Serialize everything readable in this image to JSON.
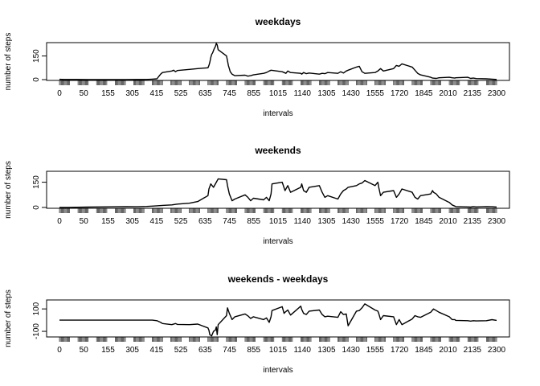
{
  "chart_data": [
    {
      "type": "line",
      "title": "weekdays",
      "xlabel": "intervals",
      "ylabel": "number of steps",
      "ylim": [
        -5,
        235
      ],
      "yticks": [
        0,
        150
      ],
      "xtick_labels": [
        "0",
        "50",
        "155",
        "305",
        "415",
        "525",
        "635",
        "745",
        "855",
        "1015",
        "1140",
        "1305",
        "1430",
        "1555",
        "1720",
        "1845",
        "2010",
        "2135",
        "2300"
      ],
      "series": [
        {
          "x": [
            0,
            25,
            50,
            100,
            155,
            230,
            305,
            360,
            415,
            470,
            500,
            525,
            535,
            545,
            555,
            605,
            615,
            625,
            635,
            700,
            745,
            800,
            805,
            810,
            815,
            820,
            825,
            830,
            835,
            840,
            845,
            850,
            855,
            900,
            905,
            910,
            915,
            920,
            930,
            945,
            1000,
            1015,
            1030,
            1045,
            1100,
            1115,
            1130,
            1140,
            1200,
            1210,
            1220,
            1230,
            1245,
            1300,
            1305,
            1315,
            1330,
            1345,
            1400,
            1415,
            1430,
            1445,
            1500,
            1515,
            1530,
            1545,
            1555,
            1600,
            1615,
            1630,
            1645,
            1700,
            1715,
            1720,
            1730,
            1745,
            1800,
            1815,
            1830,
            1845,
            1900,
            1915,
            1930,
            1945,
            2000,
            2010,
            2030,
            2045,
            2100,
            2115,
            2130,
            2135,
            2200,
            2215,
            2230,
            2245,
            2300,
            2330,
            2355
          ],
          "y": [
            2,
            1,
            1,
            1,
            0,
            0,
            0,
            0,
            1,
            1,
            3,
            5,
            20,
            35,
            45,
            55,
            60,
            50,
            58,
            65,
            70,
            75,
            90,
            110,
            140,
            160,
            170,
            185,
            200,
            210,
            230,
            220,
            190,
            150,
            120,
            90,
            70,
            50,
            35,
            25,
            28,
            22,
            25,
            30,
            40,
            45,
            55,
            60,
            50,
            45,
            40,
            55,
            45,
            40,
            35,
            45,
            38,
            42,
            35,
            40,
            38,
            45,
            40,
            50,
            42,
            55,
            60,
            80,
            85,
            50,
            40,
            45,
            55,
            60,
            70,
            55,
            70,
            90,
            85,
            100,
            80,
            60,
            40,
            30,
            15,
            10,
            8,
            12,
            15,
            12,
            10,
            12,
            15,
            8,
            10,
            7,
            5,
            3,
            1
          ]
        }
      ]
    },
    {
      "type": "line",
      "title": "weekends",
      "xlabel": "intervals",
      "ylabel": "number of steps",
      "ylim": [
        -5,
        215
      ],
      "yticks": [
        0,
        150
      ],
      "xtick_labels": [
        "0",
        "50",
        "155",
        "305",
        "415",
        "525",
        "635",
        "745",
        "855",
        "1015",
        "1140",
        "1305",
        "1430",
        "1555",
        "1720",
        "1845",
        "2010",
        "2135",
        "2300"
      ],
      "series": [
        {
          "x": [
            0,
            50,
            100,
            155,
            230,
            305,
            360,
            415,
            470,
            500,
            525,
            555,
            605,
            635,
            700,
            745,
            800,
            805,
            815,
            830,
            845,
            855,
            900,
            905,
            915,
            930,
            945,
            1000,
            1015,
            1030,
            1045,
            1100,
            1115,
            1130,
            1140,
            1145,
            1200,
            1215,
            1230,
            1245,
            1300,
            1305,
            1315,
            1330,
            1345,
            1400,
            1415,
            1430,
            1445,
            1500,
            1515,
            1530,
            1545,
            1555,
            1600,
            1615,
            1630,
            1645,
            1700,
            1715,
            1720,
            1730,
            1745,
            1800,
            1815,
            1830,
            1845,
            1900,
            1915,
            1930,
            1945,
            2000,
            2010,
            2015,
            2030,
            2045,
            2100,
            2115,
            2130,
            2135,
            2200,
            2215,
            2230,
            2245,
            2300,
            2330,
            2355
          ],
          "y": [
            0,
            0,
            1,
            2,
            3,
            4,
            5,
            4,
            6,
            8,
            10,
            12,
            15,
            20,
            25,
            35,
            70,
            110,
            140,
            120,
            150,
            170,
            165,
            130,
            80,
            40,
            50,
            75,
            60,
            40,
            55,
            45,
            60,
            40,
            80,
            140,
            150,
            100,
            130,
            90,
            120,
            140,
            100,
            90,
            120,
            130,
            90,
            60,
            70,
            50,
            80,
            100,
            110,
            120,
            130,
            140,
            145,
            160,
            130,
            150,
            120,
            70,
            90,
            100,
            60,
            80,
            110,
            90,
            60,
            50,
            70,
            80,
            100,
            90,
            80,
            60,
            30,
            15,
            8,
            5,
            3,
            2,
            5,
            3,
            5,
            4,
            2
          ]
        }
      ]
    },
    {
      "type": "line",
      "title": "weekends - weekdays",
      "xlabel": "intervals",
      "ylabel": "number of steps",
      "ylim": [
        -150,
        180
      ],
      "yticks": [
        -100,
        100
      ],
      "xtick_labels": [
        "0",
        "50",
        "155",
        "305",
        "415",
        "525",
        "635",
        "745",
        "855",
        "1015",
        "1140",
        "1305",
        "1430",
        "1555",
        "1720",
        "1845",
        "2010",
        "2135",
        "2300"
      ],
      "series": [
        {
          "x": [
            0,
            50,
            155,
            305,
            415,
            470,
            500,
            525,
            545,
            555,
            605,
            625,
            635,
            700,
            745,
            800,
            805,
            810,
            820,
            830,
            840,
            845,
            850,
            855,
            900,
            905,
            915,
            930,
            945,
            1000,
            1015,
            1030,
            1045,
            1100,
            1115,
            1130,
            1140,
            1145,
            1200,
            1210,
            1215,
            1230,
            1245,
            1300,
            1305,
            1315,
            1330,
            1345,
            1400,
            1415,
            1430,
            1445,
            1500,
            1515,
            1530,
            1545,
            1555,
            1600,
            1615,
            1630,
            1645,
            1700,
            1715,
            1720,
            1730,
            1745,
            1800,
            1815,
            1830,
            1845,
            1900,
            1915,
            1930,
            1945,
            2000,
            2010,
            2015,
            2030,
            2045,
            2100,
            2115,
            2130,
            2135,
            2200,
            2215,
            2230,
            2245,
            2300,
            2330,
            2355
          ],
          "y": [
            0,
            0,
            0,
            0,
            0,
            0,
            0,
            -5,
            -20,
            -30,
            -40,
            -30,
            -38,
            -40,
            -35,
            -70,
            -90,
            -130,
            -140,
            -100,
            -90,
            -60,
            -130,
            -40,
            40,
            110,
            60,
            5,
            30,
            55,
            38,
            15,
            30,
            5,
            20,
            -20,
            30,
            85,
            120,
            60,
            70,
            90,
            45,
            125,
            95,
            60,
            50,
            80,
            90,
            50,
            30,
            35,
            25,
            75,
            50,
            55,
            -50,
            80,
            85,
            110,
            145,
            90,
            80,
            60,
            5,
            40,
            30,
            -40,
            5,
            -40,
            10,
            40,
            30,
            25,
            70,
            90,
            100,
            85,
            70,
            30,
            5,
            5,
            -2,
            -5,
            -9,
            -5,
            -7,
            -5,
            4,
            -2
          ]
        }
      ]
    }
  ]
}
